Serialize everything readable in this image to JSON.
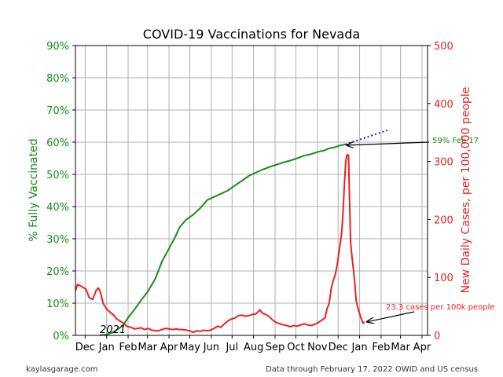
{
  "chart_data": {
    "type": "line",
    "title": "COVID-19 Vaccinations for Nevada",
    "y_left_label": "% Fully Vaccinated",
    "y_right_label": "New Daily Cases, per 100,000 people",
    "y_left_ticks": [
      "0%",
      "10%",
      "20%",
      "30%",
      "40%",
      "50%",
      "60%",
      "70%",
      "80%",
      "90%"
    ],
    "y_left_range": [
      0,
      90
    ],
    "y_right_ticks": [
      "0",
      "100",
      "200",
      "300",
      "400",
      "500"
    ],
    "y_right_range": [
      0,
      500
    ],
    "x_range_days": [
      0,
      508
    ],
    "x_ticks": [
      {
        "label": "Dec",
        "day": 14
      },
      {
        "label": "Jan",
        "day": 45
      },
      {
        "label": "Feb",
        "day": 76
      },
      {
        "label": "Mar",
        "day": 104
      },
      {
        "label": "Apr",
        "day": 135
      },
      {
        "label": "May",
        "day": 165
      },
      {
        "label": "Jun",
        "day": 196
      },
      {
        "label": "Jul",
        "day": 226
      },
      {
        "label": "Aug",
        "day": 257
      },
      {
        "label": "Sep",
        "day": 288
      },
      {
        "label": "Oct",
        "day": 318
      },
      {
        "label": "Nov",
        "day": 349
      },
      {
        "label": "Dec",
        "day": 379
      },
      {
        "label": "Jan",
        "day": 410
      },
      {
        "label": "Feb",
        "day": 441
      },
      {
        "label": "Mar",
        "day": 469
      },
      {
        "label": "Apr",
        "day": 500
      }
    ],
    "grid": true,
    "year_label": "2021",
    "series": [
      {
        "color": "#1a8a1a",
        "axis": "left",
        "points": [
          [
            35,
            0
          ],
          [
            45,
            0.3
          ],
          [
            55,
            1
          ],
          [
            65,
            2.5
          ],
          [
            70,
            3.5
          ],
          [
            76,
            5.5
          ],
          [
            85,
            8
          ],
          [
            95,
            11
          ],
          [
            104,
            13.5
          ],
          [
            115,
            17.5
          ],
          [
            125,
            23
          ],
          [
            135,
            27
          ],
          [
            145,
            31
          ],
          [
            150,
            33.5
          ],
          [
            160,
            36
          ],
          [
            170,
            37.5
          ],
          [
            180,
            39.5
          ],
          [
            190,
            42
          ],
          [
            200,
            43
          ],
          [
            210,
            44
          ],
          [
            220,
            45
          ],
          [
            230,
            46.5
          ],
          [
            240,
            48
          ],
          [
            250,
            49.5
          ],
          [
            260,
            50.5
          ],
          [
            270,
            51.5
          ],
          [
            280,
            52.3
          ],
          [
            290,
            53
          ],
          [
            300,
            53.7
          ],
          [
            310,
            54.3
          ],
          [
            320,
            55
          ],
          [
            330,
            55.8
          ],
          [
            340,
            56.3
          ],
          [
            350,
            57
          ],
          [
            360,
            57.5
          ],
          [
            365,
            58
          ],
          [
            375,
            58.5
          ],
          [
            382,
            59
          ],
          [
            389,
            59.3
          ]
        ]
      },
      {
        "color": "#1a1acc",
        "axis": "left",
        "dashed": true,
        "points": [
          [
            389,
            59.3
          ],
          [
            420,
            61.5
          ],
          [
            450,
            63.7
          ]
        ]
      },
      {
        "color": "#ee2020",
        "axis": "right",
        "points": [
          [
            0,
            77
          ],
          [
            3,
            88
          ],
          [
            8,
            85
          ],
          [
            15,
            80
          ],
          [
            20,
            65
          ],
          [
            25,
            62
          ],
          [
            30,
            78
          ],
          [
            33,
            82
          ],
          [
            36,
            75
          ],
          [
            40,
            55
          ],
          [
            45,
            45
          ],
          [
            55,
            35
          ],
          [
            60,
            28
          ],
          [
            68,
            22
          ],
          [
            75,
            15
          ],
          [
            80,
            14
          ],
          [
            85,
            11
          ],
          [
            90,
            12
          ],
          [
            95,
            13
          ],
          [
            100,
            10
          ],
          [
            105,
            12
          ],
          [
            110,
            9
          ],
          [
            115,
            8
          ],
          [
            120,
            8
          ],
          [
            125,
            10
          ],
          [
            130,
            12
          ],
          [
            135,
            11
          ],
          [
            140,
            10
          ],
          [
            145,
            11
          ],
          [
            150,
            10
          ],
          [
            155,
            10
          ],
          [
            160,
            9
          ],
          [
            165,
            8
          ],
          [
            170,
            5
          ],
          [
            175,
            8
          ],
          [
            180,
            7
          ],
          [
            185,
            9
          ],
          [
            190,
            8
          ],
          [
            195,
            9
          ],
          [
            200,
            12
          ],
          [
            205,
            16
          ],
          [
            210,
            14
          ],
          [
            215,
            20
          ],
          [
            220,
            25
          ],
          [
            225,
            28
          ],
          [
            230,
            30
          ],
          [
            235,
            34
          ],
          [
            240,
            35
          ],
          [
            245,
            33
          ],
          [
            250,
            34
          ],
          [
            255,
            36
          ],
          [
            260,
            37
          ],
          [
            263,
            40
          ],
          [
            266,
            44
          ],
          [
            270,
            38
          ],
          [
            275,
            36
          ],
          [
            280,
            32
          ],
          [
            285,
            26
          ],
          [
            290,
            22
          ],
          [
            295,
            20
          ],
          [
            300,
            18
          ],
          [
            305,
            17
          ],
          [
            310,
            15
          ],
          [
            315,
            17
          ],
          [
            320,
            16
          ],
          [
            325,
            18
          ],
          [
            330,
            20
          ],
          [
            335,
            18
          ],
          [
            340,
            17
          ],
          [
            345,
            19
          ],
          [
            350,
            22
          ],
          [
            355,
            26
          ],
          [
            360,
            30
          ],
          [
            363,
            46
          ],
          [
            366,
            55
          ],
          [
            369,
            80
          ],
          [
            372,
            95
          ],
          [
            375,
            105
          ],
          [
            378,
            125
          ],
          [
            381,
            150
          ],
          [
            384,
            175
          ],
          [
            386,
            210
          ],
          [
            388,
            260
          ],
          [
            390,
            300
          ],
          [
            392,
            312
          ],
          [
            394,
            310
          ],
          [
            395,
            260
          ],
          [
            396,
            210
          ],
          [
            397,
            160
          ],
          [
            399,
            135
          ],
          [
            401,
            115
          ],
          [
            403,
            90
          ],
          [
            405,
            60
          ],
          [
            408,
            45
          ],
          [
            412,
            30
          ],
          [
            415,
            21
          ],
          [
            417,
            23.3
          ]
        ]
      }
    ],
    "annotations": [
      {
        "text": "59% Feb 17",
        "color": "#1a8a1a"
      },
      {
        "text": "23.3 cases per 100k people",
        "color": "#ee2020"
      }
    ],
    "footer_left": "kaylasgarage.com",
    "footer_right": "Data through February 17, 2022 OWID and US census"
  }
}
